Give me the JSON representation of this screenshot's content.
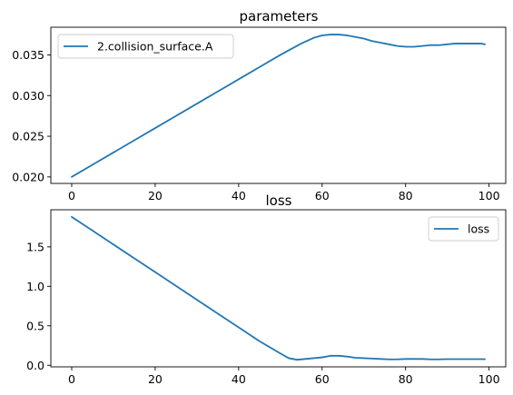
{
  "chart_data": [
    {
      "type": "line",
      "title": "parameters",
      "xlabel": "",
      "ylabel": "",
      "xlim": [
        -5,
        104
      ],
      "ylim": [
        0.0192,
        0.0384
      ],
      "xticks": [
        0,
        20,
        40,
        60,
        80,
        100
      ],
      "yticks": [
        0.02,
        0.025,
        0.03,
        0.035
      ],
      "ytick_labels": [
        "0.020",
        "0.025",
        "0.030",
        "0.035"
      ],
      "legend_position": "upper left",
      "grid": false,
      "series": [
        {
          "name": "2.collision_surface.A",
          "color": "#1f77b4",
          "x": [
            0,
            5,
            10,
            15,
            20,
            25,
            30,
            35,
            40,
            45,
            50,
            55,
            58,
            60,
            62,
            64,
            66,
            68,
            70,
            72,
            74,
            76,
            78,
            80,
            82,
            84,
            86,
            88,
            90,
            92,
            94,
            96,
            98,
            99
          ],
          "y": [
            0.02,
            0.0215,
            0.023,
            0.0245,
            0.026,
            0.0275,
            0.029,
            0.0305,
            0.032,
            0.0335,
            0.035,
            0.0364,
            0.0371,
            0.0374,
            0.0375,
            0.0375,
            0.0374,
            0.0372,
            0.037,
            0.0367,
            0.0365,
            0.0363,
            0.0361,
            0.036,
            0.036,
            0.0361,
            0.0362,
            0.0362,
            0.0363,
            0.0364,
            0.0364,
            0.0364,
            0.0364,
            0.0363
          ]
        }
      ]
    },
    {
      "type": "line",
      "title": "loss",
      "xlabel": "",
      "ylabel": "",
      "xlim": [
        -5,
        104
      ],
      "ylim": [
        -0.02,
        1.97
      ],
      "xticks": [
        0,
        20,
        40,
        60,
        80,
        100
      ],
      "yticks": [
        0.0,
        0.5,
        1.0,
        1.5
      ],
      "ytick_labels": [
        "0.0",
        "0.5",
        "1.0",
        "1.5"
      ],
      "legend_position": "upper right",
      "grid": false,
      "series": [
        {
          "name": "loss",
          "color": "#1f77b4",
          "x": [
            0,
            5,
            10,
            15,
            20,
            25,
            30,
            35,
            40,
            45,
            50,
            52,
            54,
            56,
            58,
            60,
            62,
            64,
            66,
            68,
            70,
            72,
            74,
            76,
            78,
            80,
            82,
            84,
            86,
            88,
            90,
            92,
            94,
            96,
            98,
            99
          ],
          "y": [
            1.88,
            1.705,
            1.53,
            1.355,
            1.18,
            1.005,
            0.83,
            0.655,
            0.48,
            0.305,
            0.15,
            0.09,
            0.07,
            0.08,
            0.09,
            0.1,
            0.12,
            0.12,
            0.11,
            0.095,
            0.09,
            0.085,
            0.08,
            0.075,
            0.075,
            0.08,
            0.08,
            0.08,
            0.075,
            0.075,
            0.078,
            0.078,
            0.078,
            0.078,
            0.078,
            0.077
          ]
        }
      ]
    }
  ]
}
